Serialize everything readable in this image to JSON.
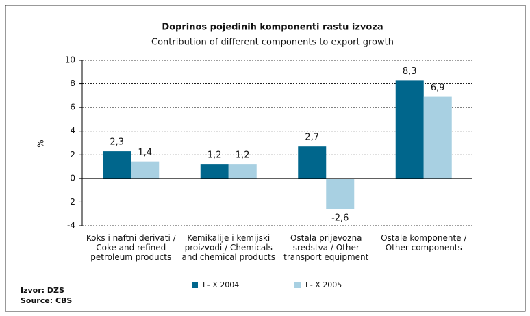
{
  "chart_data": {
    "type": "bar",
    "title": "Doprinos pojedinih komponenti rastu izvoza",
    "subtitle": "Contribution of different components to export growth",
    "ylabel": "%",
    "categories": [
      "Koks i naftni derivati /\nCoke and refined\npetroleum products",
      "Kemikalije i kemijski\nproizvodi / Chemicals\nand chemical products",
      "Ostala prijevozna\nsredstva / Other\ntransport equipment",
      "Ostale komponente /\nOther components"
    ],
    "series": [
      {
        "name": "I - X 2004",
        "color": "#00668c",
        "values": [
          2.3,
          1.2,
          2.7,
          8.3
        ],
        "value_labels": [
          "2,3",
          "1,2",
          "2,7",
          "8,3"
        ]
      },
      {
        "name": "I - X 2005",
        "color": "#a8d0e2",
        "values": [
          1.4,
          1.2,
          -2.6,
          6.9
        ],
        "value_labels": [
          "1,4",
          "1,2",
          "-2,6",
          "6,9"
        ]
      }
    ],
    "ylim": [
      -4,
      10
    ],
    "yticks": [
      -4,
      -2,
      0,
      2,
      4,
      6,
      8,
      10
    ],
    "grid": true,
    "source": [
      "Izvor: DZS",
      "Source: CBS"
    ]
  }
}
